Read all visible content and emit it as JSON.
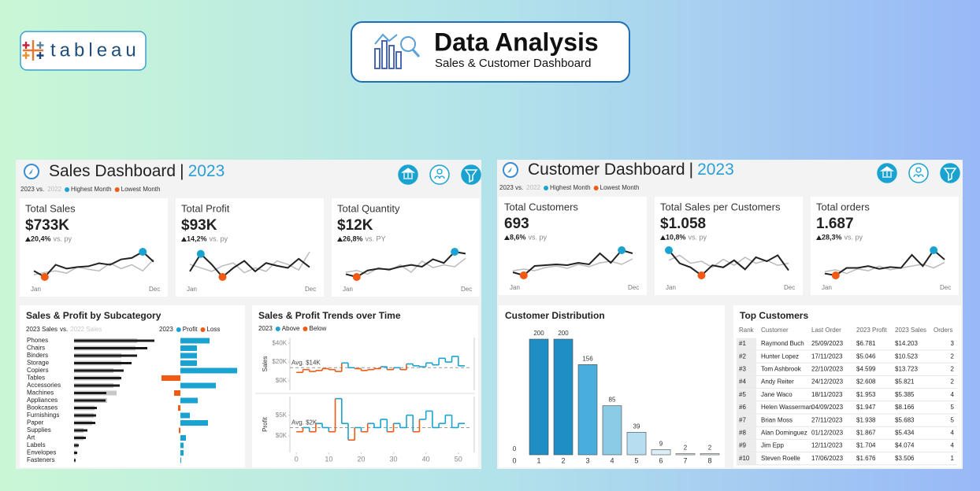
{
  "header": {
    "logo": "tableau",
    "title": "Data Analysis",
    "subtitle": "Sales & Customer Dashboard"
  },
  "sales_dashboard": {
    "title": "Sales Dashboard",
    "separator": "|",
    "year": "2023",
    "legend": {
      "compare": "2023 vs.",
      "prior": "2022",
      "highest": "Highest Month",
      "lowest": "Lowest Month",
      "highest_color": "#1aa3d1",
      "lowest_color": "#f05a14"
    },
    "kpis": [
      {
        "label": "Total Sales",
        "value": "$733K",
        "change": "20,4%",
        "note": "vs. py",
        "chart": {
          "type": "line",
          "categories": [
            "Jan",
            null,
            null,
            null,
            null,
            null,
            null,
            null,
            null,
            null,
            null,
            "Dec"
          ],
          "series": [
            {
              "color": "#222222",
              "values": [
                30,
                22,
                38,
                33,
                35,
                36,
                40,
                38,
                45,
                47,
                55,
                42
              ]
            },
            {
              "color": "#bbbbbb",
              "values": [
                25,
                28,
                30,
                27,
                35,
                32,
                30,
                40,
                33,
                38,
                30,
                45
              ]
            }
          ]
        }
      },
      {
        "label": "Total Profit",
        "value": "$93K",
        "change": "14,2%",
        "note": "vs. py",
        "chart": {
          "type": "line",
          "categories": [
            "Jan",
            null,
            null,
            null,
            null,
            null,
            null,
            null,
            null,
            null,
            null,
            "Dec"
          ],
          "series": [
            {
              "color": "#222222",
              "values": [
                30,
                55,
                40,
                22,
                35,
                45,
                30,
                42,
                38,
                35,
                48,
                36
              ]
            },
            {
              "color": "#bbbbbb",
              "values": [
                40,
                35,
                30,
                38,
                42,
                28,
                35,
                30,
                45,
                40,
                32,
                58
              ]
            }
          ]
        }
      },
      {
        "label": "Total Quantity",
        "value": "$12K",
        "change": "26,8%",
        "note": "vs. PY",
        "chart": {
          "type": "line",
          "categories": [
            "Jan",
            null,
            null,
            null,
            null,
            null,
            null,
            null,
            null,
            null,
            null,
            "Dec"
          ],
          "series": [
            {
              "color": "#222222",
              "values": [
                28,
                25,
                32,
                34,
                33,
                36,
                38,
                36,
                44,
                40,
                52,
                50
              ]
            },
            {
              "color": "#bbbbbb",
              "values": [
                30,
                32,
                28,
                35,
                32,
                38,
                30,
                42,
                35,
                38,
                36,
                45
              ]
            }
          ]
        }
      }
    ]
  },
  "customer_dashboard": {
    "title": "Customer Dashboard",
    "separator": "|",
    "year": "2023",
    "legend": {
      "compare": "2023 vs.",
      "prior": "2022",
      "highest": "Highest Month",
      "lowest": "Lowest Month",
      "highest_color": "#1aa3d1",
      "lowest_color": "#f05a14"
    },
    "kpis": [
      {
        "label": "Total Customers",
        "value": "693",
        "change": "8,6%",
        "note": "vs. py",
        "chart": {
          "type": "line",
          "categories": [
            "Jan",
            null,
            null,
            null,
            null,
            null,
            null,
            null,
            null,
            null,
            null,
            "Dec"
          ],
          "series": [
            {
              "color": "#222222",
              "values": [
                28,
                24,
                36,
                37,
                38,
                37,
                40,
                38,
                52,
                40,
                56,
                52
              ]
            },
            {
              "color": "#bbbbbb",
              "values": [
                30,
                32,
                30,
                34,
                36,
                33,
                38,
                35,
                40,
                42,
                38,
                45
              ]
            }
          ]
        }
      },
      {
        "label": "Total Sales per Customers",
        "value": "$1.058",
        "change": "10,8%",
        "note": "vs. py",
        "chart": {
          "type": "line",
          "categories": [
            "Jan",
            null,
            null,
            null,
            null,
            null,
            null,
            null,
            null,
            null,
            null,
            "Dec"
          ],
          "series": [
            {
              "color": "#222222",
              "values": [
                55,
                42,
                38,
                30,
                40,
                38,
                45,
                36,
                48,
                44,
                50,
                35
              ]
            },
            {
              "color": "#bbbbbb",
              "values": [
                45,
                50,
                42,
                44,
                38,
                46,
                40,
                48,
                42,
                45,
                40,
                42
              ]
            }
          ]
        }
      },
      {
        "label": "Total orders",
        "value": "1.687",
        "change": "28,3%",
        "note": "vs. py",
        "chart": {
          "type": "line",
          "categories": [
            "Jan",
            null,
            null,
            null,
            null,
            null,
            null,
            null,
            null,
            null,
            null,
            "Dec"
          ],
          "series": [
            {
              "color": "#222222",
              "values": [
                30,
                28,
                36,
                36,
                38,
                35,
                37,
                36,
                50,
                38,
                55,
                45
              ]
            },
            {
              "color": "#bbbbbb",
              "values": [
                32,
                34,
                30,
                35,
                33,
                38,
                34,
                36,
                38,
                40,
                36,
                42
              ]
            }
          ]
        }
      }
    ]
  },
  "chart_data": [
    {
      "type": "hbar",
      "title": "Sales & Profit by Subcategory",
      "legend_joiner": "vs.",
      "categories": [
        "Phones",
        "Chairs",
        "Binders",
        "Storage",
        "Copiers",
        "Tables",
        "Accessories",
        "Machines",
        "Appliances",
        "Bookcases",
        "Furnishings",
        "Paper",
        "Supplies",
        "Art",
        "Labels",
        "Envelopes",
        "Fasteners"
      ],
      "series": [
        {
          "name": "2022 Sales",
          "color": "#c8c8c8",
          "values": [
            80,
            78,
            60,
            60,
            50,
            58,
            50,
            54,
            42,
            26,
            25,
            23,
            12,
            12,
            5,
            3,
            2
          ]
        },
        {
          "name": "2023 Sales",
          "color": "#1b1b1b",
          "values": [
            102,
            93,
            80,
            73,
            63,
            60,
            58,
            41,
            40,
            29,
            28,
            27,
            17,
            15,
            6,
            4,
            2
          ]
        }
      ]
    },
    {
      "type": "diverging",
      "legend_title": "2023",
      "values": [
        37,
        21,
        21,
        21,
        72,
        -24,
        45,
        -8,
        22,
        -3,
        12,
        35,
        -2,
        7,
        4,
        4,
        1
      ],
      "positive": {
        "name": "Profit",
        "color": "#1aa3d1"
      },
      "negative": {
        "name": "Loss",
        "color": "#f05a14"
      }
    },
    {
      "type": "step",
      "title": "Sales & Profit Trends over Time",
      "legend_title": "2023",
      "above": {
        "name": "Above",
        "color": "#1aa3d1"
      },
      "below": {
        "name": "Below",
        "color": "#f05a14"
      },
      "y_label": "Sales",
      "avg": 14,
      "avg_label": "Avg. $14K",
      "x": [
        1,
        3,
        5,
        7,
        9,
        11,
        13,
        15,
        17,
        19,
        21,
        23,
        25,
        27,
        29,
        31,
        33,
        35,
        37,
        39,
        41,
        43,
        45,
        47,
        49,
        51
      ],
      "values": [
        9,
        12,
        10,
        11,
        13,
        12,
        10,
        19,
        14,
        13,
        11,
        12,
        13,
        15,
        12,
        14,
        12,
        18,
        16,
        15,
        19,
        17,
        24,
        20,
        26,
        16
      ],
      "ylim": [
        -10,
        46
      ],
      "yticks": [
        {
          "value": 0,
          "label": "$0K"
        },
        {
          "value": 20,
          "label": "$20K"
        },
        {
          "value": 40,
          "label": "$40K"
        }
      ],
      "xlim": [
        -2,
        52
      ]
    },
    {
      "type": "step",
      "y_label": "Profit",
      "avg": 2,
      "avg_label": "Avg. $2K",
      "above": {
        "color": "#1aa3d1"
      },
      "below": {
        "color": "#f05a14"
      },
      "x": [
        1,
        3,
        5,
        7,
        9,
        11,
        13,
        15,
        17,
        19,
        21,
        23,
        25,
        27,
        29,
        31,
        33,
        35,
        37,
        39,
        41,
        43,
        45,
        47,
        49,
        51
      ],
      "values": [
        1,
        2,
        1,
        3,
        2,
        1,
        9,
        3,
        -1,
        2,
        1,
        3,
        2,
        4,
        1,
        3,
        2,
        5,
        1,
        4,
        6,
        2,
        3,
        5,
        2,
        3
      ],
      "ylim": [
        -4,
        9.5
      ],
      "yticks": [
        {
          "value": 0,
          "label": "$0K"
        },
        {
          "value": 5,
          "label": "$5K"
        }
      ],
      "xlim": [
        -2,
        52
      ],
      "xticks": [
        0,
        10,
        20,
        30,
        40,
        50
      ]
    },
    {
      "type": "bar",
      "title": "Customer Distribution",
      "categories": [
        0,
        1,
        2,
        3,
        4,
        5,
        6,
        7,
        8
      ],
      "values": [
        0,
        200,
        200,
        156,
        85,
        39,
        9,
        2,
        2
      ],
      "colors": [
        "#1f8ec4",
        "#1f8ec4",
        "#1f8ec4",
        "#49aedb",
        "#8bcbe6",
        "#b6def0",
        "#dbeef7",
        "#e8f3f9",
        "#e8f3f9"
      ]
    }
  ],
  "top_customers": {
    "title": "Top Customers",
    "columns": [
      "Rank",
      "Customer",
      "Last Order",
      "2023 Profit",
      "2023 Sales",
      "Orders"
    ],
    "rows": [
      [
        "#1",
        "Raymond Buch",
        "25/09/2023",
        "$6.781",
        "$14.203",
        3
      ],
      [
        "#2",
        "Hunter Lopez",
        "17/11/2023",
        "$5.046",
        "$10.523",
        2
      ],
      [
        "#3",
        "Tom Ashbrook",
        "22/10/2023",
        "$4.599",
        "$13.723",
        2
      ],
      [
        "#4",
        "Andy Reiter",
        "24/12/2023",
        "$2.608",
        "$5.821",
        2
      ],
      [
        "#5",
        "Jane Waco",
        "18/11/2023",
        "$1.953",
        "$5.385",
        4
      ],
      [
        "#6",
        "Helen Wasserman",
        "04/09/2023",
        "$1.947",
        "$8.166",
        5
      ],
      [
        "#7",
        "Brian Moss",
        "27/11/2023",
        "$1.938",
        "$5.683",
        5
      ],
      [
        "#8",
        "Alan Dominguez",
        "01/12/2023",
        "$1.867",
        "$5.434",
        4
      ],
      [
        "#9",
        "Jim Epp",
        "12/11/2023",
        "$1.704",
        "$4.074",
        4
      ],
      [
        "#10",
        "Steven Roelle",
        "17/06/2023",
        "$1.676",
        "$3.506",
        1
      ]
    ]
  }
}
